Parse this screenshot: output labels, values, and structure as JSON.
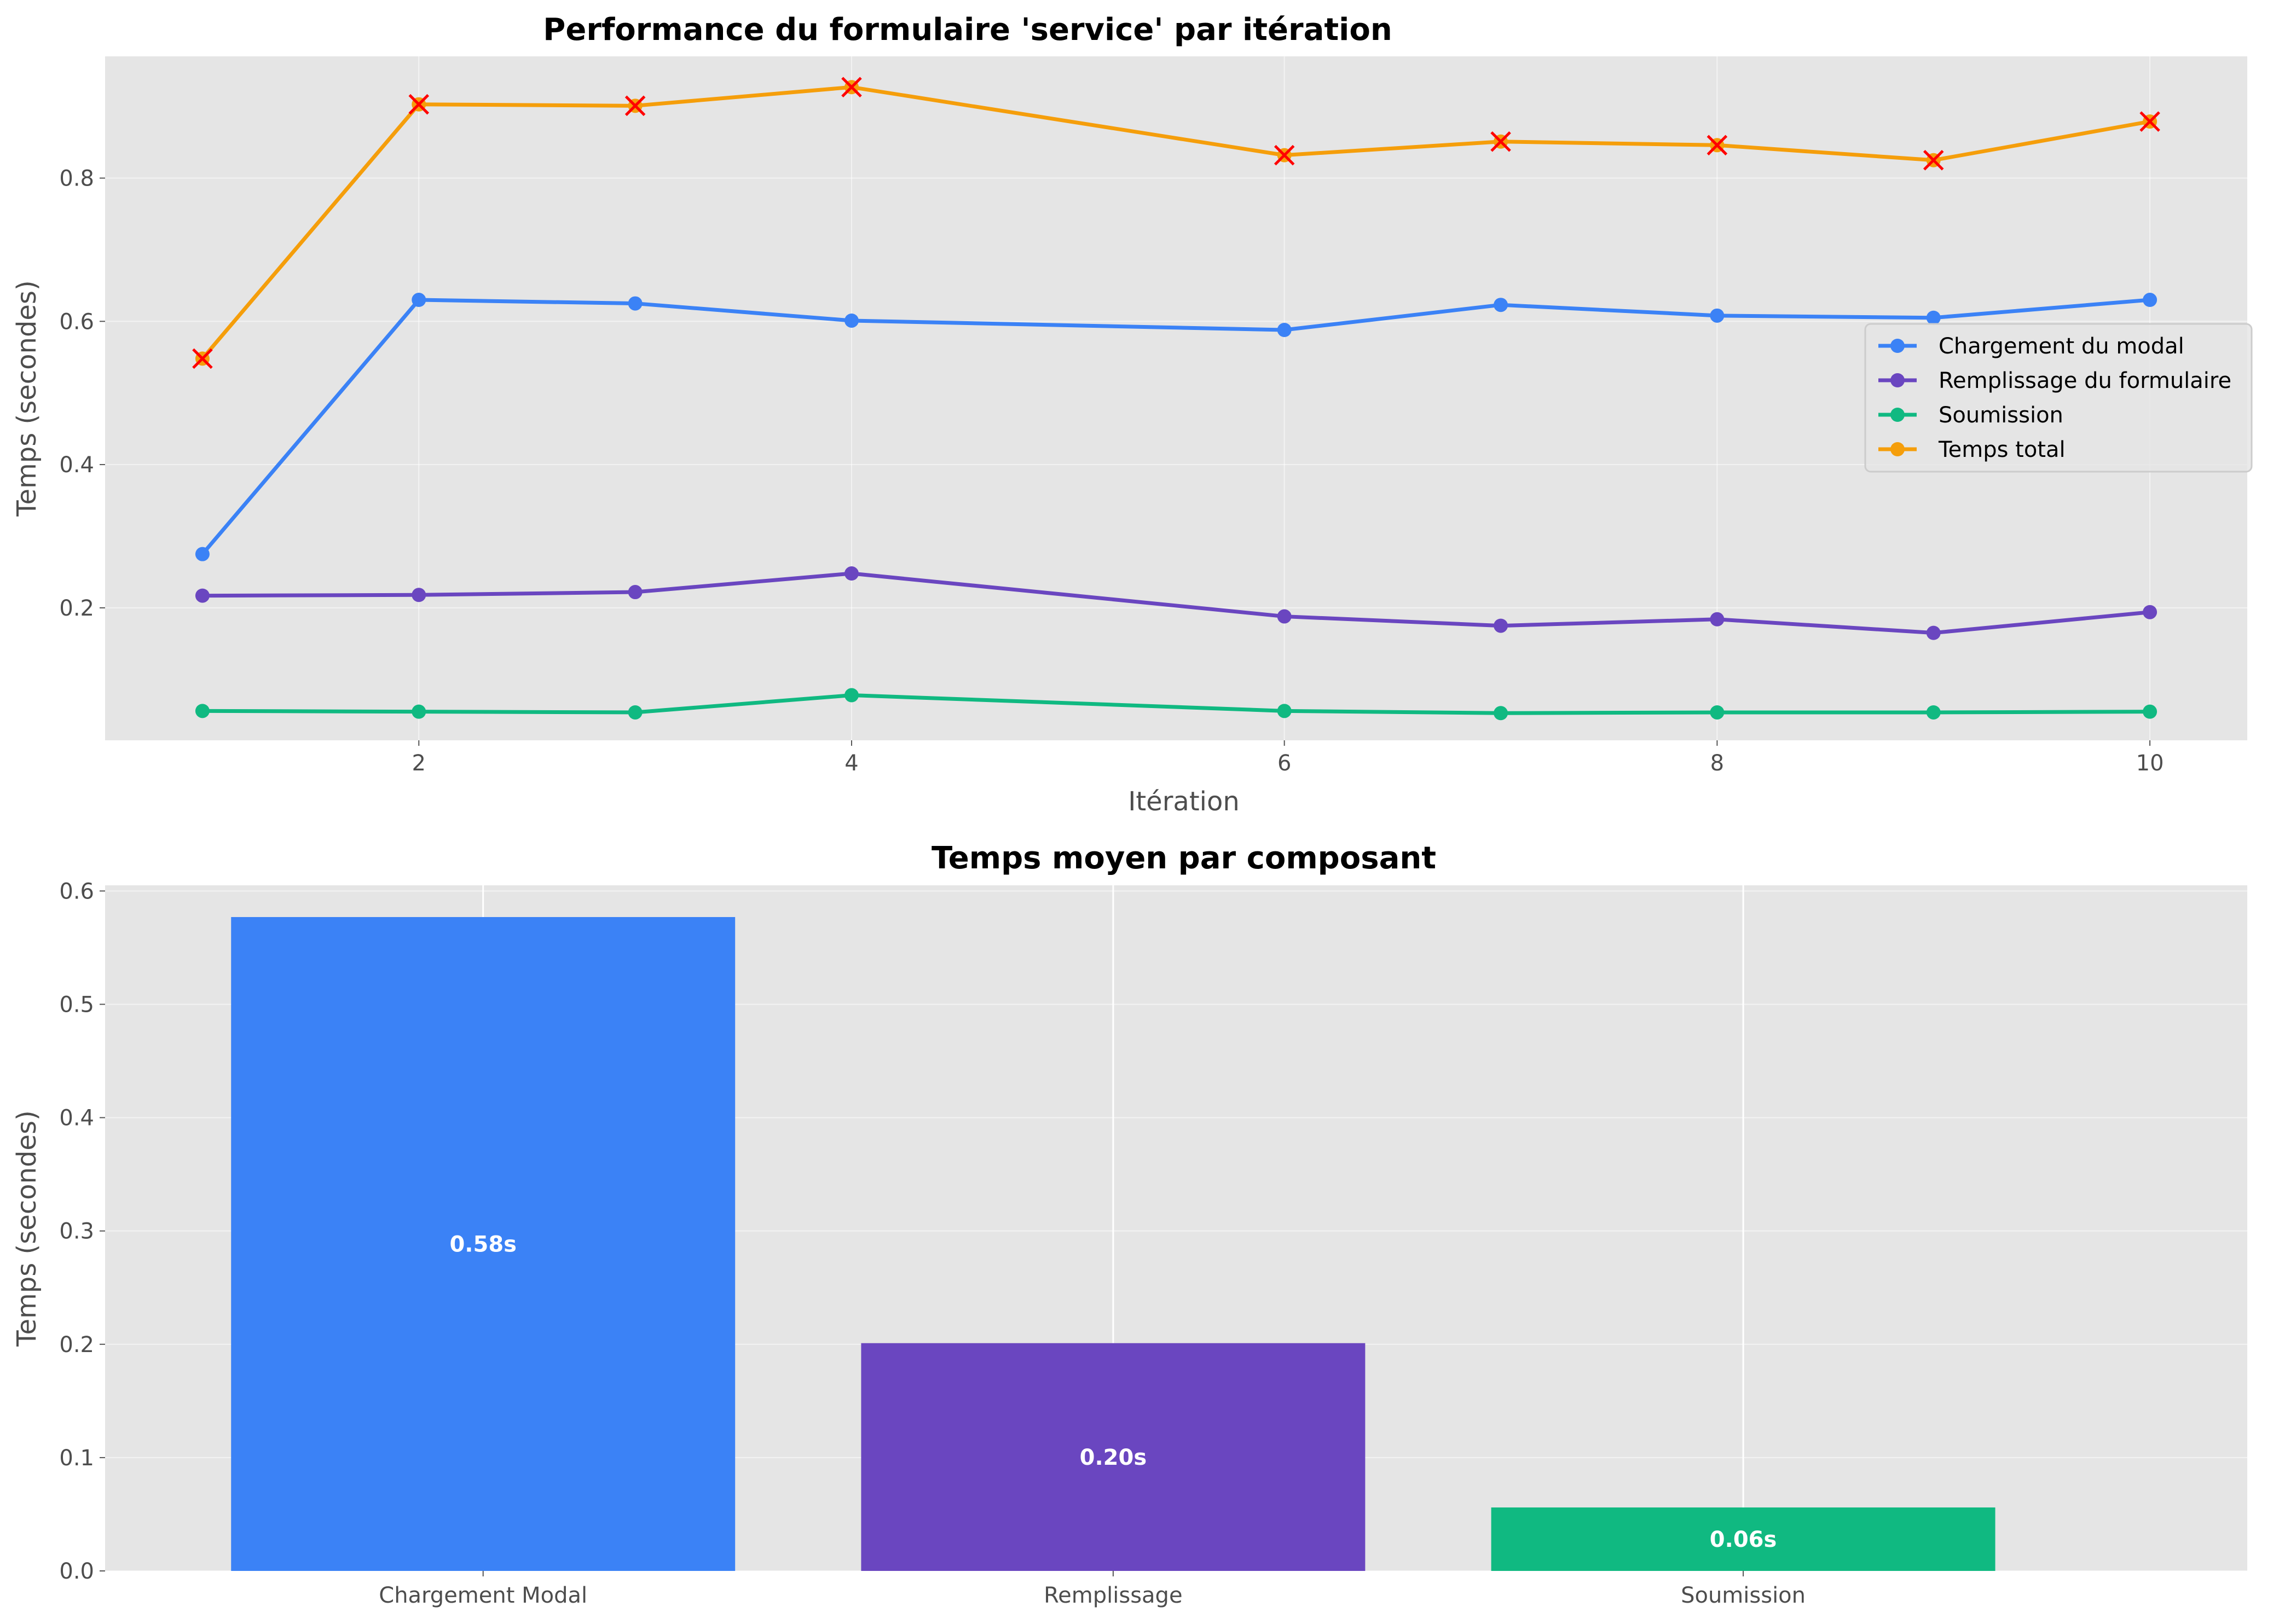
{
  "chart_data": [
    {
      "type": "line",
      "title": "Performance du formulaire 'service' par itération",
      "xlabel": "Itération",
      "ylabel": "Temps (secondes)",
      "x": [
        1,
        2,
        3,
        4,
        6,
        7,
        8,
        9,
        10
      ],
      "xlim": [
        0.55,
        10.45
      ],
      "ylim": [
        0.015,
        0.97
      ],
      "xticks": [
        2,
        4,
        6,
        8,
        10
      ],
      "yticks": [
        0.2,
        0.4,
        0.6,
        0.8
      ],
      "grid": true,
      "legend_position": "center-right",
      "series": [
        {
          "name": "Chargement du modal",
          "color": "#3b82f6",
          "marker": "circle",
          "values": [
            0.275,
            0.63,
            0.625,
            0.601,
            0.588,
            0.623,
            0.608,
            0.605,
            0.63
          ]
        },
        {
          "name": "Remplissage du formulaire",
          "color": "#6a46c0",
          "marker": "circle",
          "values": [
            0.217,
            0.218,
            0.222,
            0.248,
            0.188,
            0.175,
            0.184,
            0.165,
            0.194
          ]
        },
        {
          "name": "Soumission",
          "color": "#10b981",
          "marker": "circle",
          "values": [
            0.056,
            0.055,
            0.054,
            0.078,
            0.056,
            0.053,
            0.054,
            0.054,
            0.055
          ]
        },
        {
          "name": "Temps total",
          "color": "#f59e0b",
          "marker": "circle",
          "overlay_marker": "x",
          "overlay_color": "#ff0000",
          "values": [
            0.548,
            0.903,
            0.901,
            0.927,
            0.832,
            0.851,
            0.846,
            0.825,
            0.879
          ]
        }
      ]
    },
    {
      "type": "bar",
      "title": "Temps moyen par composant",
      "xlabel": "",
      "ylabel": "Temps (secondes)",
      "categories": [
        "Chargement Modal",
        "Remplissage",
        "Soumission"
      ],
      "values": [
        0.577,
        0.201,
        0.056
      ],
      "data_labels": [
        "0.58s",
        "0.20s",
        "0.06s"
      ],
      "colors": [
        "#3b82f6",
        "#6a46c0",
        "#10b981"
      ],
      "ylim": [
        0,
        0.605
      ],
      "yticks": [
        0.0,
        0.1,
        0.2,
        0.3,
        0.4,
        0.5,
        0.6
      ],
      "ytick_labels": [
        "0.0",
        "0.1",
        "0.2",
        "0.3",
        "0.4",
        "0.5",
        "0.6"
      ],
      "grid": true
    }
  ]
}
